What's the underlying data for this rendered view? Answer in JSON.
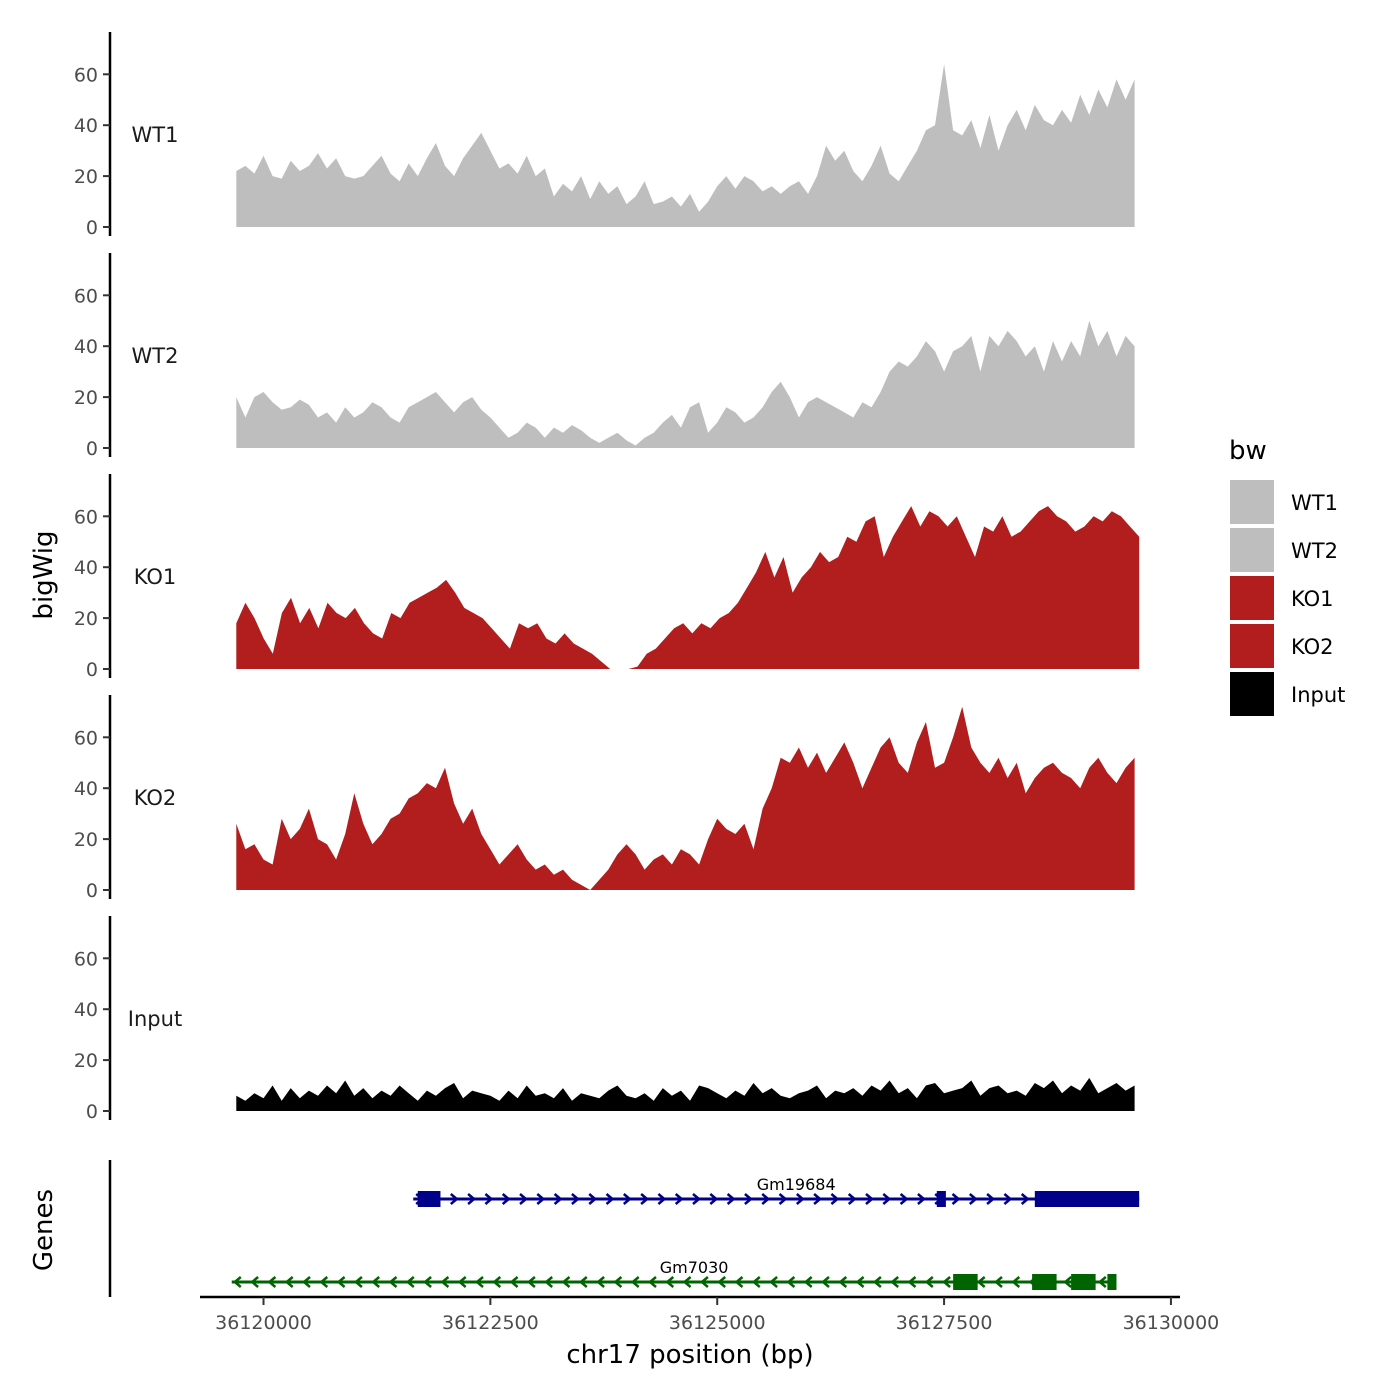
{
  "chart_data": {
    "type": "area",
    "xlabel": "chr17 position (bp)",
    "ylabel": "bigWig",
    "genes_label": "Genes",
    "xlim": [
      36119300,
      36130100
    ],
    "x_ticks": [
      36120000,
      36122500,
      36125000,
      36127500,
      36130000
    ],
    "x_tick_labels": [
      "36120000",
      "36122500",
      "36125000",
      "36127500",
      "36130000"
    ],
    "ylim": [
      0,
      75
    ],
    "y_ticks": [
      0,
      20,
      40,
      60
    ],
    "y_tick_labels": [
      "0",
      "20",
      "40",
      "60"
    ],
    "x_range": [
      36119700,
      36129600
    ],
    "series": [
      {
        "name": "WT1",
        "color": "#bebebe",
        "x_start": 36119700,
        "x_end": 36129600,
        "values": [
          22,
          24,
          21,
          28,
          20,
          19,
          26,
          22,
          24,
          29,
          23,
          27,
          20,
          19,
          20,
          24,
          28,
          21,
          18,
          25,
          20,
          27,
          33,
          24,
          20,
          27,
          32,
          37,
          30,
          23,
          25,
          21,
          28,
          20,
          23,
          12,
          17,
          14,
          20,
          11,
          18,
          13,
          16,
          9,
          12,
          18,
          9,
          10,
          12,
          8,
          13,
          6,
          10,
          16,
          20,
          15,
          20,
          18,
          14,
          16,
          13,
          16,
          18,
          13,
          20,
          32,
          26,
          30,
          22,
          18,
          24,
          32,
          21,
          18,
          24,
          30,
          38,
          40,
          64,
          38,
          36,
          42,
          31,
          44,
          30,
          40,
          46,
          38,
          48,
          42,
          40,
          46,
          41,
          52,
          44,
          54,
          47,
          58,
          50,
          58
        ]
      },
      {
        "name": "WT2",
        "color": "#bebebe",
        "x_start": 36119700,
        "x_end": 36129600,
        "values": [
          20,
          12,
          20,
          22,
          18,
          15,
          16,
          19,
          17,
          12,
          14,
          10,
          16,
          12,
          14,
          18,
          16,
          12,
          10,
          16,
          18,
          20,
          22,
          18,
          14,
          18,
          20,
          15,
          12,
          8,
          4,
          6,
          10,
          8,
          4,
          8,
          6,
          9,
          7,
          4,
          2,
          4,
          6,
          3,
          1,
          4,
          6,
          10,
          13,
          8,
          16,
          18,
          6,
          10,
          16,
          14,
          10,
          12,
          16,
          22,
          26,
          20,
          12,
          18,
          20,
          18,
          16,
          14,
          12,
          18,
          16,
          22,
          30,
          34,
          32,
          36,
          42,
          38,
          30,
          38,
          40,
          44,
          30,
          44,
          40,
          46,
          42,
          36,
          40,
          30,
          42,
          34,
          42,
          36,
          50,
          40,
          46,
          36,
          44,
          40
        ]
      },
      {
        "name": "KO1",
        "color": "#b21e1e",
        "x_start": 36119700,
        "x_end": 36129650,
        "values": [
          18,
          26,
          20,
          12,
          6,
          22,
          28,
          18,
          24,
          16,
          26,
          22,
          20,
          24,
          18,
          14,
          12,
          22,
          20,
          26,
          28,
          30,
          32,
          35,
          30,
          24,
          22,
          20,
          16,
          12,
          8,
          18,
          16,
          18,
          12,
          10,
          14,
          10,
          8,
          6,
          3,
          0,
          0,
          0,
          1,
          6,
          8,
          12,
          16,
          18,
          14,
          18,
          16,
          20,
          22,
          26,
          32,
          38,
          46,
          36,
          44,
          30,
          36,
          40,
          46,
          42,
          44,
          52,
          50,
          58,
          60,
          44,
          52,
          58,
          64,
          56,
          62,
          60,
          56,
          60,
          52,
          44,
          56,
          54,
          60,
          52,
          54,
          58,
          62,
          64,
          60,
          58,
          54,
          56,
          60,
          58,
          62,
          60,
          56,
          52
        ]
      },
      {
        "name": "KO2",
        "color": "#b21e1e",
        "x_start": 36119700,
        "x_end": 36129600,
        "values": [
          26,
          16,
          18,
          12,
          10,
          28,
          20,
          24,
          32,
          20,
          18,
          12,
          22,
          38,
          26,
          18,
          22,
          28,
          30,
          36,
          38,
          42,
          40,
          48,
          34,
          26,
          32,
          22,
          16,
          10,
          14,
          18,
          12,
          8,
          10,
          6,
          8,
          4,
          2,
          0,
          4,
          8,
          14,
          18,
          14,
          8,
          12,
          14,
          10,
          16,
          14,
          10,
          20,
          28,
          24,
          22,
          26,
          16,
          32,
          40,
          52,
          50,
          56,
          48,
          54,
          46,
          52,
          58,
          50,
          40,
          48,
          56,
          60,
          50,
          46,
          58,
          66,
          48,
          50,
          60,
          72,
          56,
          50,
          46,
          52,
          44,
          50,
          38,
          44,
          48,
          50,
          46,
          44,
          40,
          48,
          52,
          46,
          42,
          48,
          52
        ]
      },
      {
        "name": "Input",
        "color": "#000000",
        "x_start": 36119700,
        "x_end": 36129600,
        "values": [
          6,
          4,
          7,
          5,
          10,
          4,
          9,
          5,
          8,
          6,
          10,
          7,
          12,
          6,
          9,
          5,
          8,
          6,
          10,
          7,
          4,
          8,
          6,
          9,
          11,
          5,
          8,
          7,
          6,
          4,
          8,
          5,
          10,
          6,
          7,
          5,
          9,
          4,
          7,
          6,
          5,
          8,
          10,
          6,
          5,
          7,
          4,
          9,
          6,
          8,
          4,
          10,
          9,
          7,
          5,
          8,
          6,
          11,
          7,
          9,
          6,
          5,
          7,
          8,
          10,
          5,
          8,
          7,
          9,
          6,
          10,
          8,
          12,
          7,
          9,
          5,
          10,
          11,
          7,
          8,
          9,
          12,
          6,
          9,
          10,
          7,
          8,
          6,
          11,
          9,
          12,
          7,
          10,
          8,
          13,
          7,
          9,
          11,
          8,
          10
        ]
      }
    ],
    "legend": {
      "title": "bw",
      "position": "right",
      "entries": [
        {
          "label": "WT1",
          "color": "#bebebe"
        },
        {
          "label": "WT2",
          "color": "#bebebe"
        },
        {
          "label": "KO1",
          "color": "#b21e1e"
        },
        {
          "label": "KO2",
          "color": "#b21e1e"
        },
        {
          "label": "Input",
          "color": "#000000"
        }
      ]
    },
    "genes": [
      {
        "name": "Gm19684",
        "strand": "+",
        "color": "#00008b",
        "start": 36121650,
        "end": 36129650,
        "exons": [
          [
            36121700,
            36121950
          ],
          [
            36127420,
            36127520
          ],
          [
            36128500,
            36129650
          ]
        ]
      },
      {
        "name": "Gm7030",
        "strand": "-",
        "color": "#006400",
        "start": 36119650,
        "end": 36129400,
        "exons": [
          [
            36127600,
            36127870
          ],
          [
            36128470,
            36128740
          ],
          [
            36128900,
            36129170
          ],
          [
            36129300,
            36129400
          ]
        ]
      }
    ]
  }
}
